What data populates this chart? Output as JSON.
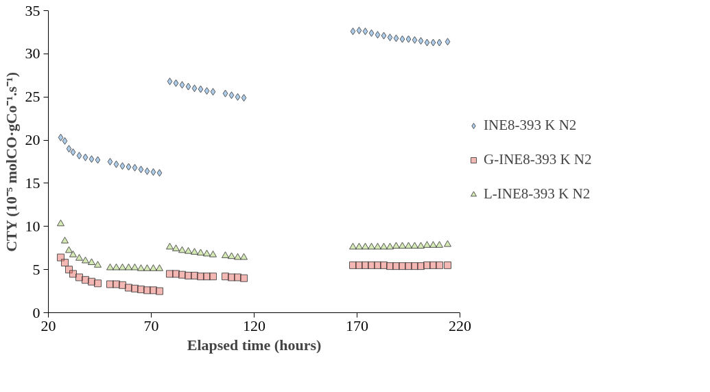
{
  "chart_data": {
    "type": "scatter",
    "xlabel": "Elapsed time (hours)",
    "ylabel": "CTY (10⁻⁵ molCO·gCo⁻¹.s⁻¹)",
    "x": [
      26,
      28,
      30,
      32,
      35,
      38,
      41,
      44,
      50,
      53,
      56,
      59,
      62,
      65,
      68,
      71,
      74,
      79,
      82,
      85,
      88,
      91,
      94,
      97,
      100,
      106,
      109,
      112,
      115,
      168,
      171,
      174,
      177,
      180,
      183,
      186,
      189,
      192,
      195,
      198,
      201,
      204,
      207,
      210,
      214
    ],
    "series": [
      {
        "name": "INE8-393 K N2",
        "color": "#5b9bd5",
        "marker": "diamond",
        "values": [
          20.3,
          19.9,
          19.0,
          18.6,
          18.2,
          18.0,
          17.8,
          17.7,
          17.5,
          17.2,
          17.0,
          16.9,
          16.8,
          16.6,
          16.4,
          16.3,
          16.2,
          26.8,
          26.6,
          26.4,
          26.2,
          26.0,
          25.9,
          25.7,
          25.6,
          25.4,
          25.2,
          25.0,
          24.9,
          32.6,
          32.7,
          32.6,
          32.4,
          32.2,
          32.1,
          31.9,
          31.8,
          31.7,
          31.7,
          31.6,
          31.5,
          31.3,
          31.3,
          31.3,
          31.4
        ]
      },
      {
        "name": "G-INE8-393 K N2",
        "color": "#e8706a",
        "marker": "square",
        "values": [
          6.4,
          5.8,
          5.0,
          4.5,
          4.1,
          3.8,
          3.6,
          3.4,
          3.3,
          3.3,
          3.2,
          2.9,
          2.8,
          2.7,
          2.6,
          2.6,
          2.5,
          4.5,
          4.5,
          4.4,
          4.3,
          4.3,
          4.2,
          4.2,
          4.2,
          4.2,
          4.1,
          4.1,
          4.0,
          5.5,
          5.5,
          5.5,
          5.5,
          5.5,
          5.5,
          5.4,
          5.4,
          5.4,
          5.4,
          5.4,
          5.4,
          5.5,
          5.5,
          5.5,
          5.5
        ]
      },
      {
        "name": "L-INE8-393 K N2",
        "color": "#a9d46a",
        "marker": "triangle",
        "values": [
          10.3,
          8.3,
          7.2,
          6.7,
          6.3,
          6.0,
          5.8,
          5.5,
          5.2,
          5.2,
          5.2,
          5.2,
          5.2,
          5.1,
          5.1,
          5.1,
          5.1,
          7.6,
          7.4,
          7.2,
          7.1,
          7.0,
          6.9,
          6.8,
          6.7,
          6.6,
          6.5,
          6.4,
          6.4,
          7.6,
          7.6,
          7.6,
          7.6,
          7.6,
          7.6,
          7.6,
          7.7,
          7.7,
          7.7,
          7.7,
          7.7,
          7.8,
          7.8,
          7.8,
          7.9
        ]
      }
    ],
    "xlim": [
      20,
      220
    ],
    "xticks": [
      20,
      70,
      120,
      170,
      220
    ],
    "ylim": [
      0,
      35
    ],
    "yticks": [
      0,
      5,
      10,
      15,
      20,
      25,
      30,
      35
    ],
    "grid": false,
    "legend": "right"
  }
}
